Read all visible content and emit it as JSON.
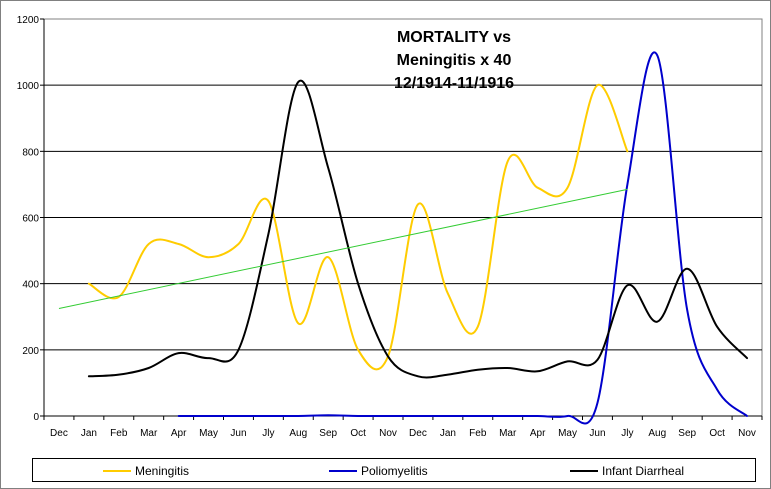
{
  "chart_data": {
    "type": "line",
    "title": [
      "MORTALITY vs",
      "Meningitis x 40",
      "12/1914-11/1916"
    ],
    "xlabel": "",
    "ylabel": "",
    "categories": [
      "Dec",
      "Jan",
      "Feb",
      "Mar",
      "Apr",
      "May",
      "Jun",
      "Jly",
      "Aug",
      "Sep",
      "Oct",
      "Nov",
      "Dec",
      "Jan",
      "Feb",
      "Mar",
      "Apr",
      "May",
      "Jun",
      "Jly",
      "Aug",
      "Sep",
      "Oct",
      "Nov"
    ],
    "ylim": [
      0,
      1200
    ],
    "yticks": [
      0,
      200,
      400,
      600,
      800,
      1000,
      1200
    ],
    "grid": true,
    "legend_position": "bottom",
    "series": [
      {
        "name": "Meningitis",
        "color": "#ffcc00",
        "values": [
          null,
          400,
          360,
          520,
          520,
          480,
          520,
          650,
          280,
          480,
          200,
          180,
          640,
          370,
          270,
          770,
          690,
          690,
          1000,
          800,
          null,
          null,
          null,
          null
        ]
      },
      {
        "name": "Poliomyelitis",
        "color": "#0000cc",
        "values": [
          null,
          null,
          null,
          null,
          0,
          0,
          0,
          0,
          0,
          2,
          0,
          0,
          0,
          0,
          0,
          0,
          0,
          0,
          40,
          700,
          1090,
          320,
          80,
          0
        ]
      },
      {
        "name": "Infant Diarrheal",
        "color": "#000000",
        "values": [
          null,
          120,
          125,
          145,
          190,
          175,
          200,
          550,
          1010,
          750,
          400,
          180,
          120,
          125,
          140,
          145,
          135,
          165,
          170,
          395,
          285,
          445,
          270,
          175
        ]
      },
      {
        "name": "",
        "color": "#33cc33",
        "trend": true,
        "values": [
          325,
          null,
          null,
          null,
          null,
          null,
          null,
          null,
          null,
          null,
          null,
          null,
          null,
          null,
          null,
          null,
          null,
          null,
          null,
          685,
          null,
          null,
          null,
          null
        ]
      }
    ]
  }
}
